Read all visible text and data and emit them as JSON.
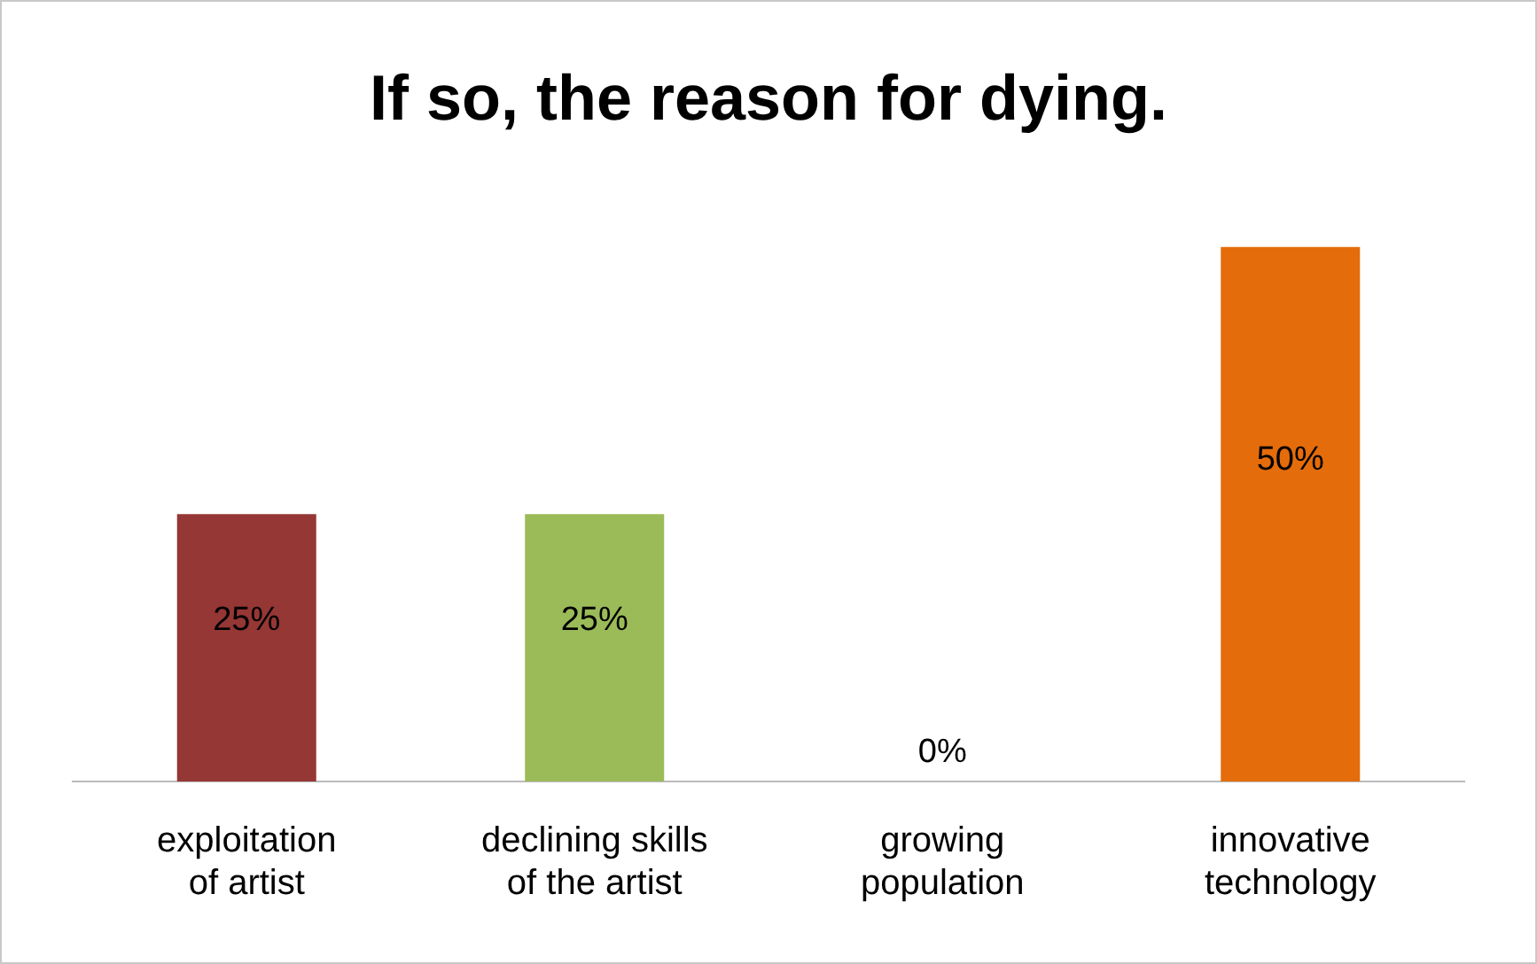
{
  "chart_data": {
    "type": "bar",
    "title": "If so, the reason for dying.",
    "categories": [
      "exploitation of artist",
      "declining skills of the artist",
      "growing population",
      "innovative technology"
    ],
    "values": [
      25,
      25,
      0,
      50
    ],
    "colors": [
      "#953735",
      "#9bbb59",
      "#4f81bd",
      "#e46c0a"
    ],
    "value_labels": [
      "25%",
      "25%",
      "0%",
      "50%"
    ],
    "grid": false,
    "legend": false
  }
}
